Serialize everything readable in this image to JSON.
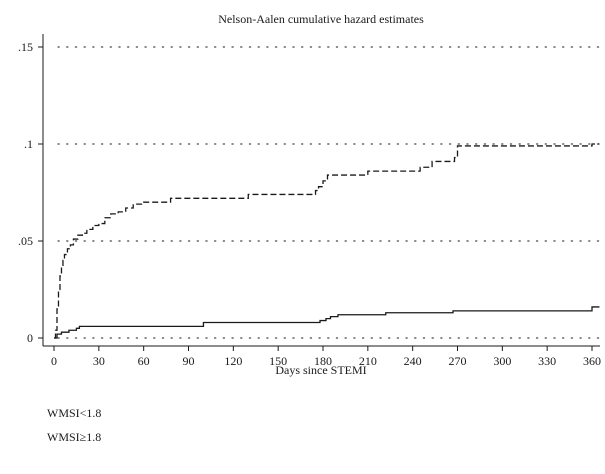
{
  "chart_data": {
    "type": "line",
    "title": "Nelson-Aalen cumulative hazard estimates",
    "xlabel": "Days since STEMI",
    "ylabel": "",
    "xlim": [
      -5,
      365
    ],
    "ylim": [
      0,
      0.15
    ],
    "x_ticks": [
      0,
      30,
      60,
      90,
      120,
      150,
      180,
      210,
      240,
      270,
      300,
      330,
      360
    ],
    "x_tick_labels": [
      "0",
      "30",
      "60",
      "90",
      "120",
      "150",
      "180",
      "210",
      "240",
      "270",
      "300",
      "330",
      "360"
    ],
    "y_ticks": [
      0,
      0.05,
      0.1,
      0.15
    ],
    "y_tick_labels": [
      "0",
      ".05",
      ".1",
      ".15"
    ],
    "grid": "horizontal dotted",
    "legend_position": "bottom-left",
    "series": [
      {
        "name": "WMSI<1.8",
        "style": "solid",
        "color": "#1a1a1a",
        "x": [
          0,
          2,
          5,
          10,
          15,
          17,
          100,
          178,
          182,
          185,
          190,
          192,
          222,
          267,
          360,
          365
        ],
        "y": [
          0,
          0.002,
          0.003,
          0.004,
          0.005,
          0.006,
          0.008,
          0.009,
          0.01,
          0.011,
          0.012,
          0.012,
          0.013,
          0.014,
          0.016,
          0.016
        ]
      },
      {
        "name": "WMSI≥1.8",
        "style": "dashed",
        "color": "#1a1a1a",
        "x": [
          0,
          1,
          2,
          3,
          4,
          5,
          6,
          7,
          9,
          11,
          13,
          16,
          19,
          22,
          26,
          30,
          34,
          38,
          43,
          48,
          53,
          60,
          78,
          130,
          175,
          177,
          180,
          183,
          210,
          245,
          253,
          268,
          270,
          300,
          360,
          365
        ],
        "y": [
          0,
          0.004,
          0.015,
          0.025,
          0.032,
          0.036,
          0.04,
          0.043,
          0.046,
          0.048,
          0.051,
          0.053,
          0.054,
          0.056,
          0.058,
          0.059,
          0.062,
          0.064,
          0.065,
          0.067,
          0.069,
          0.07,
          0.072,
          0.074,
          0.076,
          0.078,
          0.081,
          0.084,
          0.086,
          0.088,
          0.091,
          0.093,
          0.099,
          0.099,
          0.1,
          0.1
        ]
      }
    ]
  }
}
